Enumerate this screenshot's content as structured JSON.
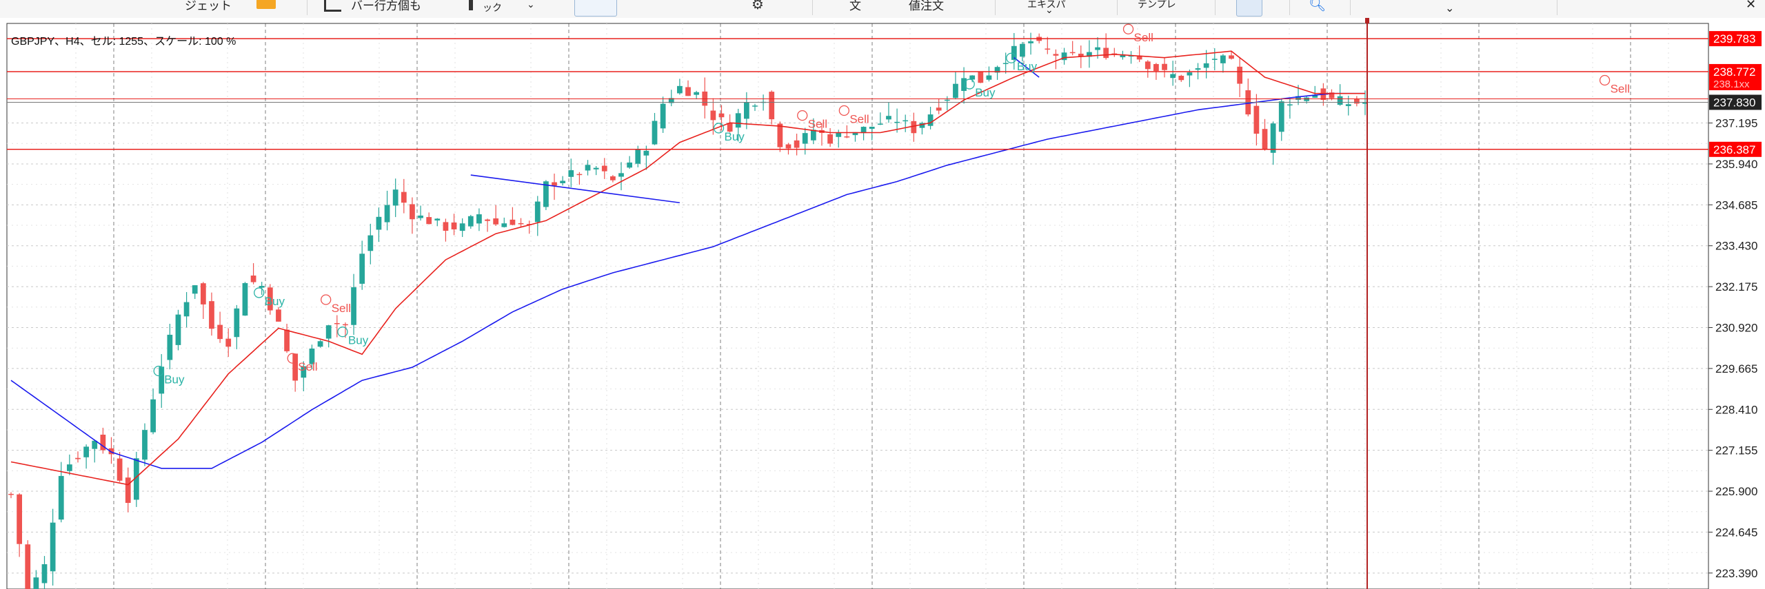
{
  "toolbar": {
    "items": [
      {
        "name": "toolbar-item-widget",
        "label": "ジェット"
      },
      {
        "name": "toolbar-item-bar-display",
        "label": "バー行方個も"
      },
      {
        "name": "toolbar-item-tick",
        "label": "ック"
      },
      {
        "name": "toolbar-item-order",
        "label": "文"
      },
      {
        "name": "toolbar-item-limit-order",
        "label": "値注文"
      },
      {
        "name": "toolbar-item-expert",
        "label": "エキスパ"
      },
      {
        "name": "toolbar-item-template",
        "label": "テンプレ"
      }
    ]
  },
  "chart": {
    "info": "GBPJPY、H4、セル: 1255、スケール: 100 %",
    "colors": {
      "grid": "#c8c8c8",
      "bull": "#26a69a",
      "bear": "#ef5350",
      "ma_fast": "#e8211d",
      "ma_slow": "#1a1aee",
      "hline": "#e8211d",
      "cursor": "#b22222",
      "price_tag": "#ff0000",
      "current_tag": "#222222",
      "signal": "#2bb3a6"
    },
    "current_price": "237.830"
  },
  "chart_data": {
    "type": "candlestick",
    "symbol": "GBPJPY",
    "timeframe": "H4",
    "y_ticks": [
      "237.195",
      "235.940",
      "234.685",
      "233.430",
      "232.175",
      "230.920",
      "229.665",
      "228.410",
      "227.155",
      "225.900",
      "224.645",
      "223.390"
    ],
    "ylim": [
      222.9,
      240.25
    ],
    "horizontal_lines": [
      "239.783",
      "238.772",
      "236.387"
    ],
    "hidden_tag": "238.1xx",
    "current_price": "237.830",
    "signals": [
      {
        "label": "Buy",
        "bar": 18
      },
      {
        "label": "Buy",
        "bar": 30
      },
      {
        "label": "Sell",
        "bar": 34
      },
      {
        "label": "Sell",
        "bar": 38
      },
      {
        "label": "Buy",
        "bar": 40
      },
      {
        "label": "Buy",
        "bar": 85
      },
      {
        "label": "Sell",
        "bar": 95
      },
      {
        "label": "Sell",
        "bar": 100
      },
      {
        "label": "Buy",
        "bar": 120
      },
      {
        "label": "Buy",
        "bar": 115
      },
      {
        "label": "Sell",
        "bar": 134
      },
      {
        "label": "Sell",
        "bar": 191
      }
    ],
    "close_path": [
      [
        0,
        225.8
      ],
      [
        2,
        222.8
      ],
      [
        4,
        223.6
      ],
      [
        6,
        226.5
      ],
      [
        8,
        227.0
      ],
      [
        10,
        227.5
      ],
      [
        12,
        227.0
      ],
      [
        14,
        225.7
      ],
      [
        16,
        227.8
      ],
      [
        18,
        229.8
      ],
      [
        20,
        231.3
      ],
      [
        22,
        232.3
      ],
      [
        24,
        230.9
      ],
      [
        26,
        230.5
      ],
      [
        28,
        232.4
      ],
      [
        30,
        232.2
      ],
      [
        32,
        231.0
      ],
      [
        34,
        229.3
      ],
      [
        36,
        230.2
      ],
      [
        38,
        231.1
      ],
      [
        40,
        231.0
      ],
      [
        42,
        233.2
      ],
      [
        44,
        234.3
      ],
      [
        46,
        235.1
      ],
      [
        48,
        234.4
      ],
      [
        50,
        234.2
      ],
      [
        52,
        234.0
      ],
      [
        54,
        234.0
      ],
      [
        56,
        234.4
      ],
      [
        58,
        234.1
      ],
      [
        60,
        234.2
      ],
      [
        62,
        234.0
      ],
      [
        64,
        235.3
      ],
      [
        66,
        235.5
      ],
      [
        68,
        235.7
      ],
      [
        70,
        235.8
      ],
      [
        72,
        235.4
      ],
      [
        74,
        236.0
      ],
      [
        76,
        236.5
      ],
      [
        78,
        237.8
      ],
      [
        80,
        238.3
      ],
      [
        82,
        238.1
      ],
      [
        84,
        237.4
      ],
      [
        86,
        237.1
      ],
      [
        88,
        237.8
      ],
      [
        90,
        238.0
      ],
      [
        92,
        236.6
      ],
      [
        94,
        236.5
      ],
      [
        96,
        237.0
      ],
      [
        98,
        236.7
      ],
      [
        100,
        236.9
      ],
      [
        102,
        237.0
      ],
      [
        104,
        237.2
      ],
      [
        106,
        237.3
      ],
      [
        108,
        237.0
      ],
      [
        110,
        237.5
      ],
      [
        112,
        238.0
      ],
      [
        114,
        238.7
      ],
      [
        116,
        238.5
      ],
      [
        118,
        239.0
      ],
      [
        120,
        239.4
      ],
      [
        122,
        239.7
      ],
      [
        124,
        239.4
      ],
      [
        126,
        239.2
      ],
      [
        128,
        239.3
      ],
      [
        130,
        239.4
      ],
      [
        132,
        239.3
      ],
      [
        134,
        239.4
      ],
      [
        136,
        239.0
      ],
      [
        138,
        238.7
      ],
      [
        140,
        238.6
      ],
      [
        142,
        238.8
      ],
      [
        144,
        239.2
      ],
      [
        146,
        239.0
      ],
      [
        148,
        237.6
      ],
      [
        150,
        236.4
      ],
      [
        152,
        237.8
      ],
      [
        154,
        238.0
      ],
      [
        156,
        238.1
      ],
      [
        158,
        237.9
      ],
      [
        160,
        237.8
      ],
      [
        162,
        237.83
      ]
    ],
    "ma_fast_path": [
      [
        0,
        226.8
      ],
      [
        8,
        226.4
      ],
      [
        14,
        226.1
      ],
      [
        20,
        227.5
      ],
      [
        26,
        229.5
      ],
      [
        32,
        230.9
      ],
      [
        38,
        230.5
      ],
      [
        42,
        230.1
      ],
      [
        46,
        231.5
      ],
      [
        52,
        233.0
      ],
      [
        58,
        233.8
      ],
      [
        64,
        234.2
      ],
      [
        70,
        235.0
      ],
      [
        76,
        235.8
      ],
      [
        80,
        236.6
      ],
      [
        86,
        237.2
      ],
      [
        92,
        237.1
      ],
      [
        98,
        236.9
      ],
      [
        104,
        236.9
      ],
      [
        110,
        237.2
      ],
      [
        114,
        237.9
      ],
      [
        120,
        238.6
      ],
      [
        126,
        239.2
      ],
      [
        132,
        239.3
      ],
      [
        138,
        239.2
      ],
      [
        146,
        239.4
      ],
      [
        150,
        238.6
      ],
      [
        156,
        238.1
      ],
      [
        162,
        238.1
      ]
    ],
    "ma_slow_path": [
      [
        0,
        229.3
      ],
      [
        6,
        228.2
      ],
      [
        12,
        227.1
      ],
      [
        18,
        226.6
      ],
      [
        24,
        226.6
      ],
      [
        30,
        227.4
      ],
      [
        36,
        228.4
      ],
      [
        42,
        229.3
      ],
      [
        48,
        229.7
      ],
      [
        54,
        230.5
      ],
      [
        60,
        231.4
      ],
      [
        66,
        232.1
      ],
      [
        72,
        232.6
      ],
      [
        78,
        233.0
      ],
      [
        84,
        233.4
      ],
      [
        90,
        234.0
      ],
      [
        96,
        234.6
      ],
      [
        100,
        235.0
      ],
      [
        106,
        235.4
      ],
      [
        112,
        235.9
      ],
      [
        118,
        236.3
      ],
      [
        124,
        236.7
      ],
      [
        130,
        237.0
      ],
      [
        136,
        237.3
      ],
      [
        142,
        237.6
      ],
      [
        148,
        237.8
      ],
      [
        154,
        238.0
      ],
      [
        158,
        238.1
      ],
      [
        162,
        238.1
      ]
    ],
    "trendlines": [
      {
        "from": [
          55,
          235.6
        ],
        "to": [
          80,
          234.75
        ]
      },
      {
        "from": [
          120,
          239.2
        ],
        "to": [
          123,
          238.6
        ]
      }
    ]
  }
}
